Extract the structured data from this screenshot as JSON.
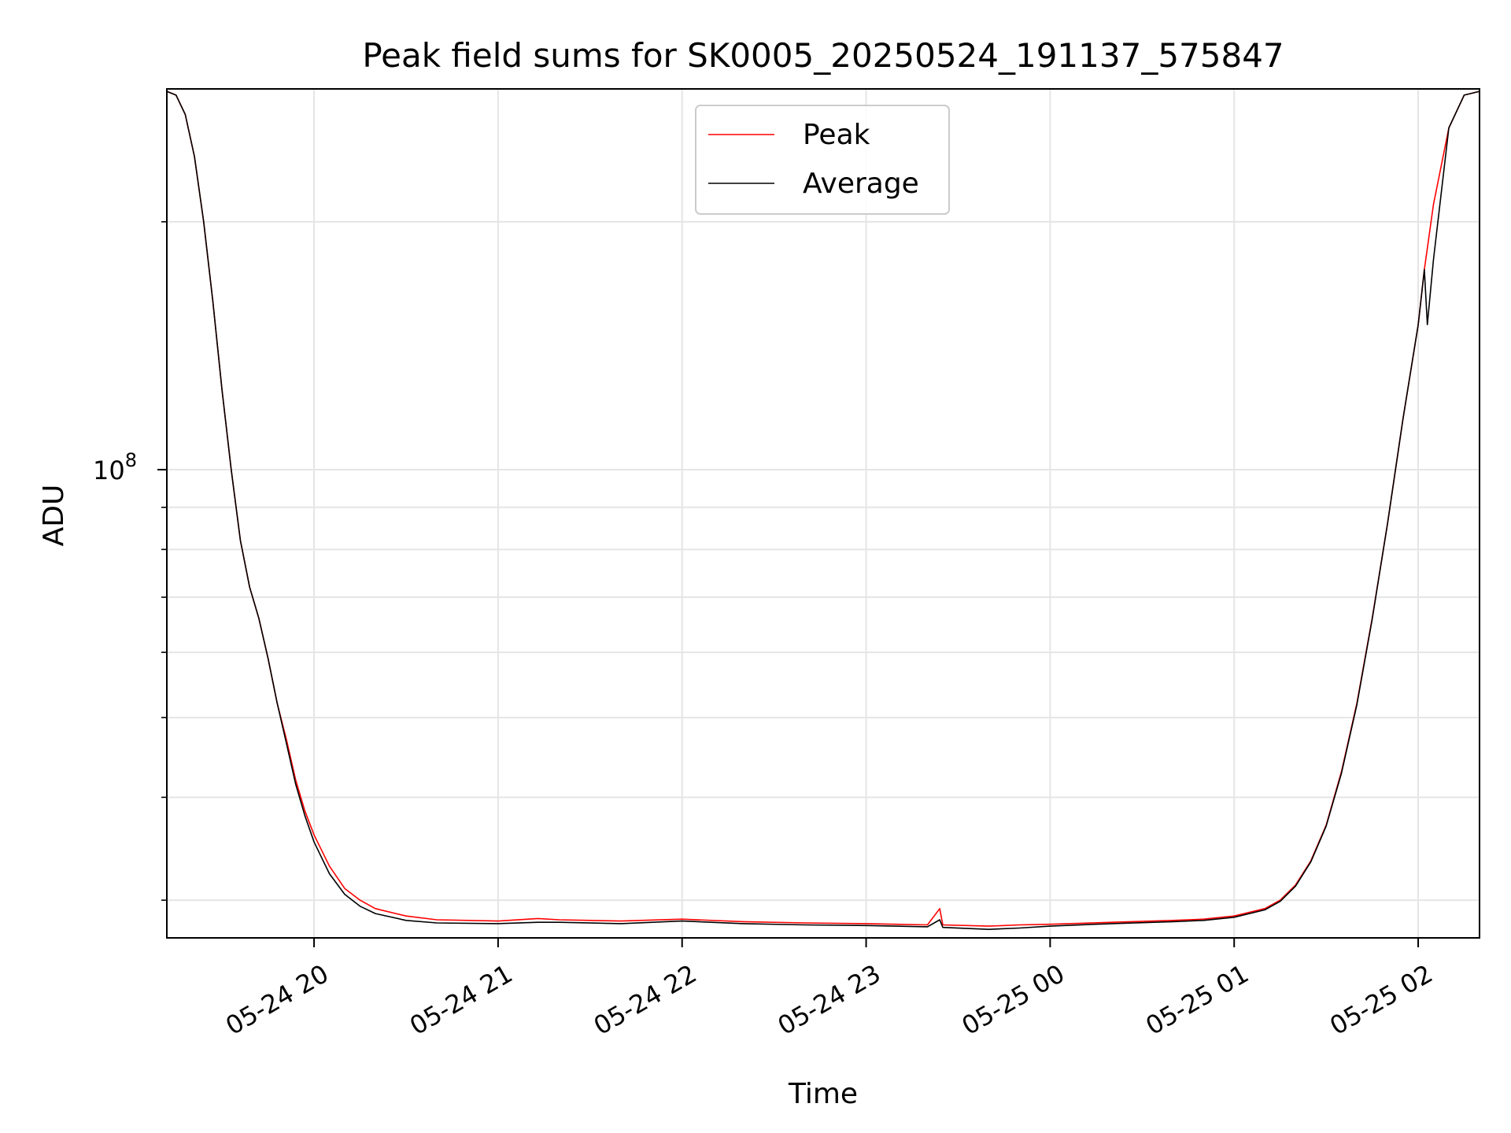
{
  "chart_data": {
    "type": "line",
    "title": "Peak field sums for SK0005_20250524_191137_575847",
    "xlabel": "Time",
    "ylabel": "ADU",
    "y_scale": "log",
    "grid": true,
    "legend_position": "top-center",
    "x_ticks": [
      "05-24 20",
      "05-24 21",
      "05-24 22",
      "05-24 23",
      "05-25 00",
      "05-25 01",
      "05-25 02"
    ],
    "y_tick_label": {
      "base": "10",
      "exponent": "8"
    },
    "xlim": [
      "2025-05-24 19:12",
      "2025-05-25 02:20"
    ],
    "ylim": [
      27000000,
      290000000
    ],
    "series": [
      {
        "name": "Peak",
        "color": "#ff0000",
        "points": [
          [
            "2025-05-24 19:12",
            288000000
          ],
          [
            "2025-05-24 19:15",
            285000000
          ],
          [
            "2025-05-24 19:18",
            270000000
          ],
          [
            "2025-05-24 19:21",
            240000000
          ],
          [
            "2025-05-24 19:24",
            200000000
          ],
          [
            "2025-05-24 19:27",
            160000000
          ],
          [
            "2025-05-24 19:30",
            125000000
          ],
          [
            "2025-05-24 19:33",
            100000000
          ],
          [
            "2025-05-24 19:36",
            82000000
          ],
          [
            "2025-05-24 19:39",
            72000000
          ],
          [
            "2025-05-24 19:42",
            66000000
          ],
          [
            "2025-05-24 19:45",
            59000000
          ],
          [
            "2025-05-24 19:48",
            52000000
          ],
          [
            "2025-05-24 19:51",
            47000000
          ],
          [
            "2025-05-24 19:54",
            42000000
          ],
          [
            "2025-05-24 19:57",
            38500000
          ],
          [
            "2025-05-24 20:00",
            36000000
          ],
          [
            "2025-05-24 20:05",
            33000000
          ],
          [
            "2025-05-24 20:10",
            31000000
          ],
          [
            "2025-05-24 20:15",
            30000000
          ],
          [
            "2025-05-24 20:20",
            29300000
          ],
          [
            "2025-05-24 20:30",
            28700000
          ],
          [
            "2025-05-24 20:40",
            28400000
          ],
          [
            "2025-05-24 21:00",
            28300000
          ],
          [
            "2025-05-24 21:13",
            28500000
          ],
          [
            "2025-05-24 21:20",
            28400000
          ],
          [
            "2025-05-24 21:40",
            28300000
          ],
          [
            "2025-05-24 22:00",
            28450000
          ],
          [
            "2025-05-24 22:20",
            28250000
          ],
          [
            "2025-05-24 22:40",
            28150000
          ],
          [
            "2025-05-24 23:00",
            28100000
          ],
          [
            "2025-05-24 23:20",
            28000000
          ],
          [
            "2025-05-24 23:24",
            29300000
          ],
          [
            "2025-05-24 23:25",
            28000000
          ],
          [
            "2025-05-24 23:40",
            27900000
          ],
          [
            "2025-05-24 23:50",
            28000000
          ],
          [
            "2025-05-25 00:00",
            28050000
          ],
          [
            "2025-05-25 00:20",
            28200000
          ],
          [
            "2025-05-25 00:40",
            28350000
          ],
          [
            "2025-05-25 00:50",
            28450000
          ],
          [
            "2025-05-25 01:00",
            28700000
          ],
          [
            "2025-05-25 01:10",
            29300000
          ],
          [
            "2025-05-25 01:15",
            30000000
          ],
          [
            "2025-05-25 01:20",
            31300000
          ],
          [
            "2025-05-25 01:25",
            33500000
          ],
          [
            "2025-05-25 01:30",
            37000000
          ],
          [
            "2025-05-25 01:35",
            43000000
          ],
          [
            "2025-05-25 01:40",
            52000000
          ],
          [
            "2025-05-25 01:45",
            66000000
          ],
          [
            "2025-05-25 01:50",
            86000000
          ],
          [
            "2025-05-25 01:55",
            115000000
          ],
          [
            "2025-05-25 02:00",
            150000000
          ],
          [
            "2025-05-25 02:02",
            175000000
          ],
          [
            "2025-05-25 02:05",
            210000000
          ],
          [
            "2025-05-25 02:10",
            260000000
          ],
          [
            "2025-05-25 02:15",
            285000000
          ],
          [
            "2025-05-25 02:20",
            288000000
          ]
        ]
      },
      {
        "name": "Average",
        "color": "#000000",
        "points": [
          [
            "2025-05-24 19:12",
            288000000
          ],
          [
            "2025-05-24 19:15",
            285000000
          ],
          [
            "2025-05-24 19:18",
            270000000
          ],
          [
            "2025-05-24 19:21",
            240000000
          ],
          [
            "2025-05-24 19:24",
            200000000
          ],
          [
            "2025-05-24 19:27",
            160000000
          ],
          [
            "2025-05-24 19:30",
            125000000
          ],
          [
            "2025-05-24 19:33",
            100000000
          ],
          [
            "2025-05-24 19:36",
            82000000
          ],
          [
            "2025-05-24 19:39",
            72000000
          ],
          [
            "2025-05-24 19:42",
            66000000
          ],
          [
            "2025-05-24 19:45",
            59000000
          ],
          [
            "2025-05-24 19:48",
            52000000
          ],
          [
            "2025-05-24 19:51",
            46500000
          ],
          [
            "2025-05-24 19:54",
            41500000
          ],
          [
            "2025-05-24 19:57",
            38000000
          ],
          [
            "2025-05-24 20:00",
            35300000
          ],
          [
            "2025-05-24 20:05",
            32300000
          ],
          [
            "2025-05-24 20:10",
            30500000
          ],
          [
            "2025-05-24 20:15",
            29500000
          ],
          [
            "2025-05-24 20:20",
            28900000
          ],
          [
            "2025-05-24 20:30",
            28350000
          ],
          [
            "2025-05-24 20:40",
            28150000
          ],
          [
            "2025-05-24 21:00",
            28100000
          ],
          [
            "2025-05-24 21:13",
            28200000
          ],
          [
            "2025-05-24 21:20",
            28200000
          ],
          [
            "2025-05-24 21:40",
            28100000
          ],
          [
            "2025-05-24 22:00",
            28300000
          ],
          [
            "2025-05-24 22:20",
            28100000
          ],
          [
            "2025-05-24 22:40",
            28000000
          ],
          [
            "2025-05-24 23:00",
            27950000
          ],
          [
            "2025-05-24 23:20",
            27850000
          ],
          [
            "2025-05-24 23:24",
            28400000
          ],
          [
            "2025-05-24 23:25",
            27800000
          ],
          [
            "2025-05-24 23:40",
            27650000
          ],
          [
            "2025-05-24 23:50",
            27750000
          ],
          [
            "2025-05-25 00:00",
            27900000
          ],
          [
            "2025-05-25 00:20",
            28100000
          ],
          [
            "2025-05-25 00:40",
            28250000
          ],
          [
            "2025-05-25 00:50",
            28350000
          ],
          [
            "2025-05-25 01:00",
            28600000
          ],
          [
            "2025-05-25 01:10",
            29200000
          ],
          [
            "2025-05-25 01:15",
            29900000
          ],
          [
            "2025-05-25 01:20",
            31200000
          ],
          [
            "2025-05-25 01:25",
            33400000
          ],
          [
            "2025-05-25 01:30",
            36900000
          ],
          [
            "2025-05-25 01:35",
            42800000
          ],
          [
            "2025-05-25 01:40",
            51800000
          ],
          [
            "2025-05-25 01:45",
            65800000
          ],
          [
            "2025-05-25 01:50",
            86000000
          ],
          [
            "2025-05-25 01:55",
            115000000
          ],
          [
            "2025-05-25 02:00",
            150000000
          ],
          [
            "2025-05-25 02:02",
            175000000
          ],
          [
            "2025-05-25 02:03",
            150000000
          ],
          [
            "2025-05-25 02:05",
            180000000
          ],
          [
            "2025-05-25 02:10",
            260000000
          ],
          [
            "2025-05-25 02:15",
            285000000
          ],
          [
            "2025-05-25 02:20",
            288000000
          ]
        ]
      }
    ]
  }
}
